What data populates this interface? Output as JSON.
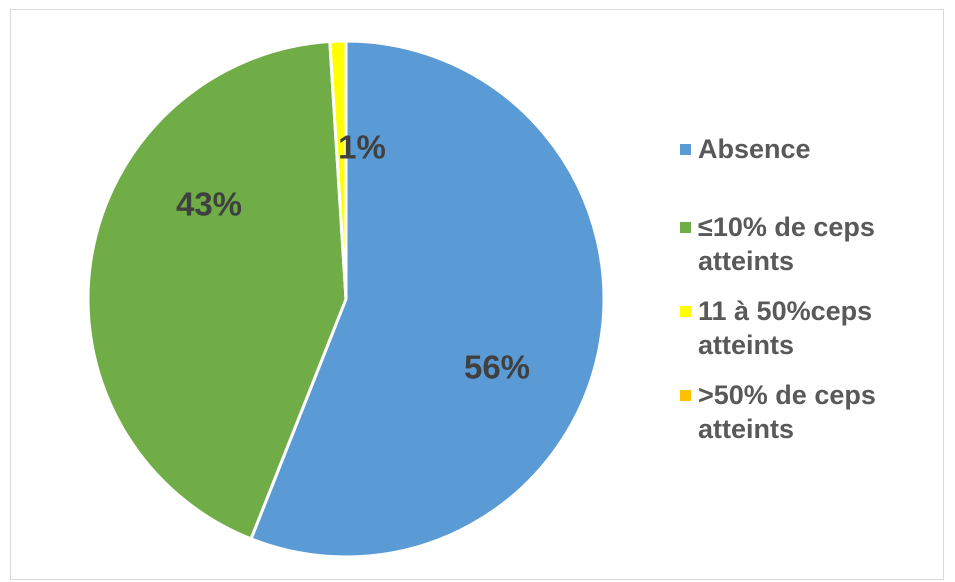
{
  "chart_data": {
    "type": "pie",
    "categories": [
      "Absence",
      "≤10% de ceps atteints",
      "11 à 50%ceps atteints",
      ">50% de ceps atteints"
    ],
    "values": [
      56,
      43,
      1,
      0
    ],
    "data_labels": [
      "56%",
      "43%",
      "1%",
      ""
    ],
    "colors": [
      "#5b9bd5",
      "#70ad47",
      "#ffff00",
      "#ffc000"
    ],
    "legend_position": "right"
  }
}
